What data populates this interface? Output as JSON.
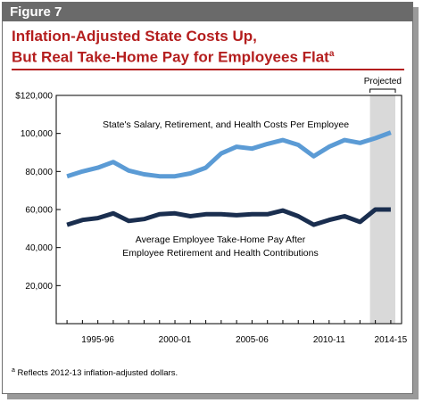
{
  "figure": {
    "label": "Figure 7",
    "title_line1": "Inflation-Adjusted State Costs Up,",
    "title_line2": "But Real Take-Home Pay for Employees Flat",
    "title_footnote_marker": "a",
    "footnote_marker": "a",
    "footnote": "Reflects 2012-13 inflation-adjusted dollars."
  },
  "colors": {
    "title": "#b41e1e",
    "header_bar": "#6a6a6a",
    "costs_line": "#5b9bd5",
    "pay_line": "#1a2e4f",
    "projected_band": "#d9d9d9"
  },
  "chart_data": {
    "type": "line",
    "projected_label": "Projected",
    "ylim": [
      0,
      120000
    ],
    "yticks": [
      20000,
      40000,
      60000,
      80000,
      100000,
      120000
    ],
    "ytick_labels": [
      "20,000",
      "40,000",
      "60,000",
      "80,000",
      "100,000",
      "$120,000"
    ],
    "x_years": [
      1993,
      1994,
      1995,
      1996,
      1997,
      1998,
      1999,
      2000,
      2001,
      2002,
      2003,
      2004,
      2005,
      2006,
      2007,
      2008,
      2009,
      2010,
      2011,
      2012,
      2013,
      2014
    ],
    "xtick_years": [
      1995,
      2000,
      2005,
      2010,
      2014
    ],
    "xtick_labels": [
      "1995-96",
      "2000-01",
      "2005-06",
      "2010-11",
      "2014-15"
    ],
    "projected_from_year": 2013,
    "series": [
      {
        "name": "State's Salary, Retirement, and Health Costs Per Employee",
        "values": [
          77500,
          80000,
          82000,
          85000,
          80500,
          78500,
          77500,
          77500,
          79000,
          82000,
          89500,
          93000,
          92000,
          94500,
          96500,
          94000,
          88000,
          93000,
          96500,
          95000,
          97500,
          100500
        ]
      },
      {
        "name": "Average Employee Take-Home Pay After Employee Retirement and Health Contributions",
        "name_line1": "Average Employee Take-Home Pay After",
        "name_line2": "Employee Retirement and Health Contributions",
        "values": [
          52000,
          54500,
          55500,
          58000,
          54000,
          55000,
          57500,
          58000,
          56500,
          57500,
          57500,
          57000,
          57500,
          57500,
          59500,
          56500,
          52000,
          54500,
          56500,
          53500,
          60000,
          60000
        ]
      }
    ]
  }
}
